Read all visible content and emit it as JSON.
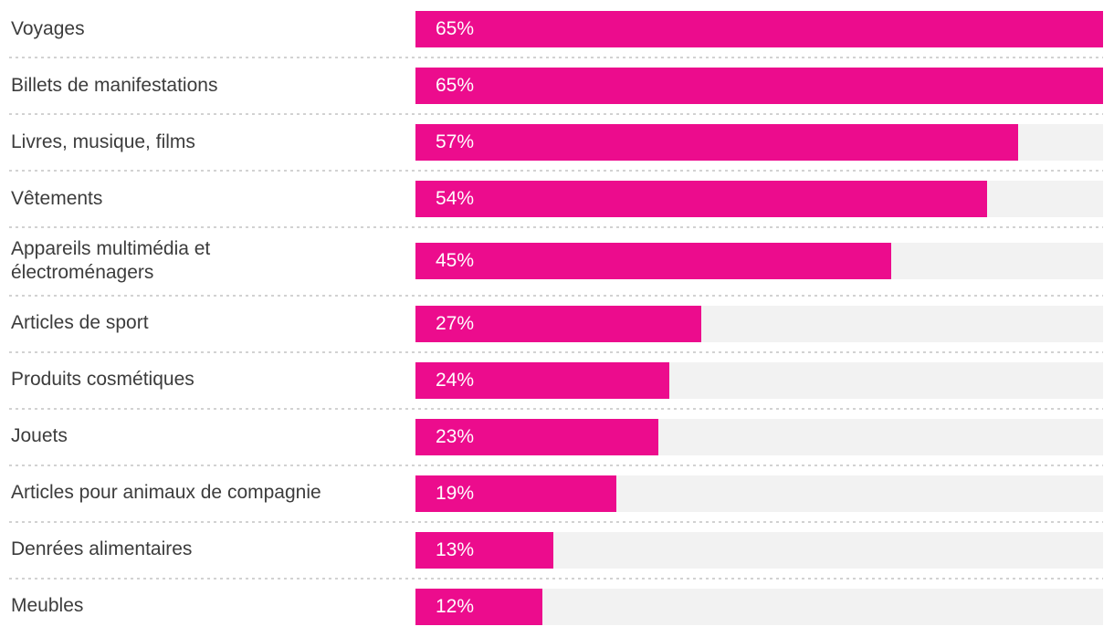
{
  "chart_data": {
    "type": "bar",
    "orientation": "horizontal",
    "title": "",
    "xlabel": "",
    "ylabel": "",
    "xlim": [
      0,
      65
    ],
    "grid": false,
    "legend": false,
    "value_suffix": "%",
    "categories": [
      "Voyages",
      "Billets de manifestations",
      "Livres, musique, films",
      "Vêtements",
      "Appareils multimédia et\nélectroménagers",
      "Articles de sport",
      "Produits cosmétiques",
      "Jouets",
      "Articles pour animaux de compagnie",
      "Denrées alimentaires",
      "Meubles"
    ],
    "values": [
      65,
      65,
      57,
      54,
      45,
      27,
      24,
      23,
      19,
      13,
      12
    ],
    "value_labels": [
      "65%",
      "65%",
      "57%",
      "54%",
      "45%",
      "27%",
      "24%",
      "23%",
      "19%",
      "13%",
      "12%"
    ]
  },
  "colors": {
    "bar_fill": "#ec0c8d",
    "bar_track": "#f2f2f2",
    "label_text": "#3c3c3c",
    "value_text": "#ffffff",
    "separator": "#d2d2d2",
    "background": "#ffffff"
  }
}
